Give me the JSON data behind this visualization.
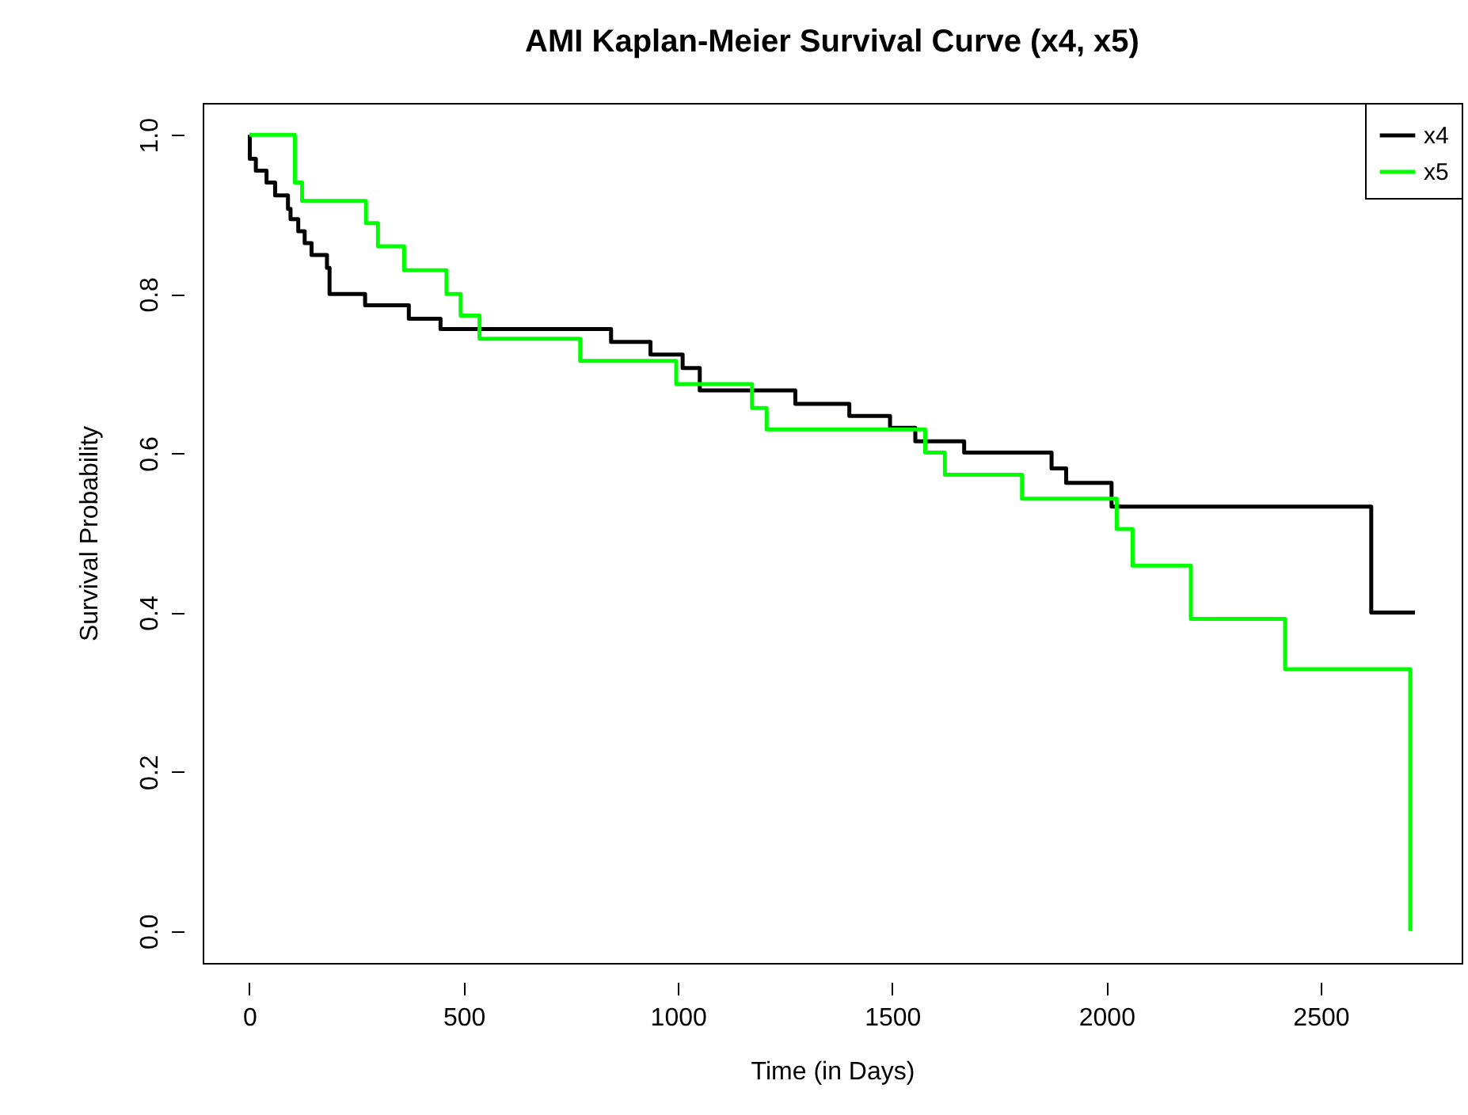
{
  "chart_data": {
    "type": "step",
    "title": "AMI Kaplan-Meier Survival Curve (x4, x5)",
    "xlabel": "Time (in Days)",
    "ylabel": "Survival Probability",
    "xlim": [
      -109,
      2829
    ],
    "ylim": [
      -0.04,
      1.04
    ],
    "xticks": [
      0,
      500,
      1000,
      1500,
      2000,
      2500
    ],
    "yticks": [
      {
        "value": 0,
        "label": "0.0"
      },
      {
        "value": 0.2,
        "label": "0.2"
      },
      {
        "value": 0.4,
        "label": "0.4"
      },
      {
        "value": 0.6,
        "label": "0.6"
      },
      {
        "value": 0.8,
        "label": "0.8"
      },
      {
        "value": 1,
        "label": "1.0"
      }
    ],
    "legend": "top right",
    "grid": false,
    "series": [
      {
        "name": "x4",
        "color": "#000000",
        "x": [
          0,
          1,
          15,
          40,
          60,
          90,
          96,
          114,
          129,
          145,
          181,
          187,
          270,
          372,
          446,
          844,
          936,
          1011,
          1051,
          1274,
          1400,
          1495,
          1554,
          1668,
          1872,
          1906,
          2012,
          2618,
          2720
        ],
        "values": [
          1.0,
          0.97,
          0.955,
          0.94,
          0.924,
          0.907,
          0.894,
          0.879,
          0.864,
          0.849,
          0.833,
          0.8,
          0.786,
          0.769,
          0.756,
          0.74,
          0.724,
          0.707,
          0.679,
          0.662,
          0.647,
          0.632,
          0.615,
          0.601,
          0.581,
          0.563,
          0.533,
          0.4,
          0.4
        ]
      },
      {
        "name": "x5",
        "color": "#00ff00",
        "x": [
          0,
          106,
          123,
          272,
          300,
          361,
          460,
          493,
          537,
          772,
          996,
          1173,
          1207,
          1577,
          1623,
          1803,
          2024,
          2061,
          2197,
          2417,
          2709
        ],
        "values": [
          1.0,
          0.94,
          0.917,
          0.889,
          0.86,
          0.83,
          0.8,
          0.773,
          0.744,
          0.716,
          0.687,
          0.657,
          0.63,
          0.601,
          0.573,
          0.543,
          0.505,
          0.459,
          0.392,
          0.329,
          0.0
        ]
      }
    ]
  }
}
